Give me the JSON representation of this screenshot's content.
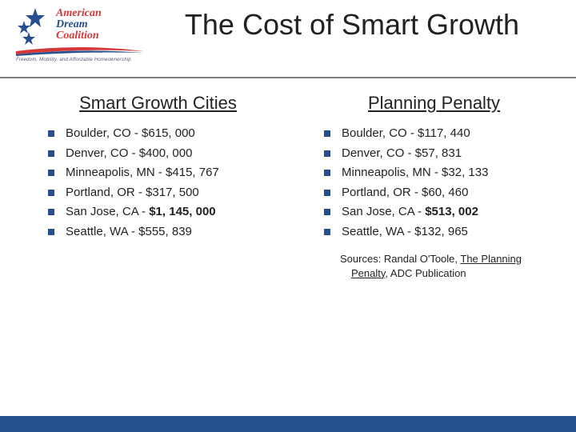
{
  "title": "The Cost of Smart Growth",
  "logo": {
    "line1": "American",
    "line2": "Dream",
    "line3": "Coalition",
    "tagline": "Freedom, Mobility, and Affordable Homeownership",
    "star_color": "#264f8f",
    "red": "#d43838",
    "blue": "#264f8f"
  },
  "left": {
    "heading": "Smart Growth Cities",
    "items": [
      {
        "text": "Boulder, CO - $615, 000",
        "bold": false
      },
      {
        "text": "Denver, CO - $400, 000",
        "bold": false
      },
      {
        "text": "Minneapolis, MN - $415, 767",
        "bold": false
      },
      {
        "text": "Portland, OR - $317, 500",
        "bold": false
      },
      {
        "text": "San Jose, CA - $1, 145, 000",
        "bold": true
      },
      {
        "text": "Seattle, WA - $555, 839",
        "bold": false
      }
    ]
  },
  "right": {
    "heading": "Planning Penalty",
    "items": [
      {
        "text": "Boulder, CO - $117, 440",
        "bold": false
      },
      {
        "text": "Denver, CO - $57, 831",
        "bold": false
      },
      {
        "text": "Minneapolis, MN - $32, 133",
        "bold": false
      },
      {
        "text": "Portland, OR - $60, 460",
        "bold": false
      },
      {
        "text": "San Jose, CA - $513, 002",
        "bold": true
      },
      {
        "text": "Seattle, WA - $132, 965",
        "bold": false
      }
    ]
  },
  "sources": {
    "prefix": "Sources: Randal O'Toole, ",
    "u1": "The Planning Penalty",
    "mid": ", ADC Publication"
  },
  "colors": {
    "bullet": "#264f8f",
    "footer": "#264f8f",
    "rule": "#808080",
    "text": "#222222",
    "background": "#ffffff"
  },
  "fonts": {
    "title_family": "Arial",
    "title_size_pt": 28,
    "heading_size_pt": 17,
    "body_size_pt": 12,
    "sources_size_pt": 10
  }
}
